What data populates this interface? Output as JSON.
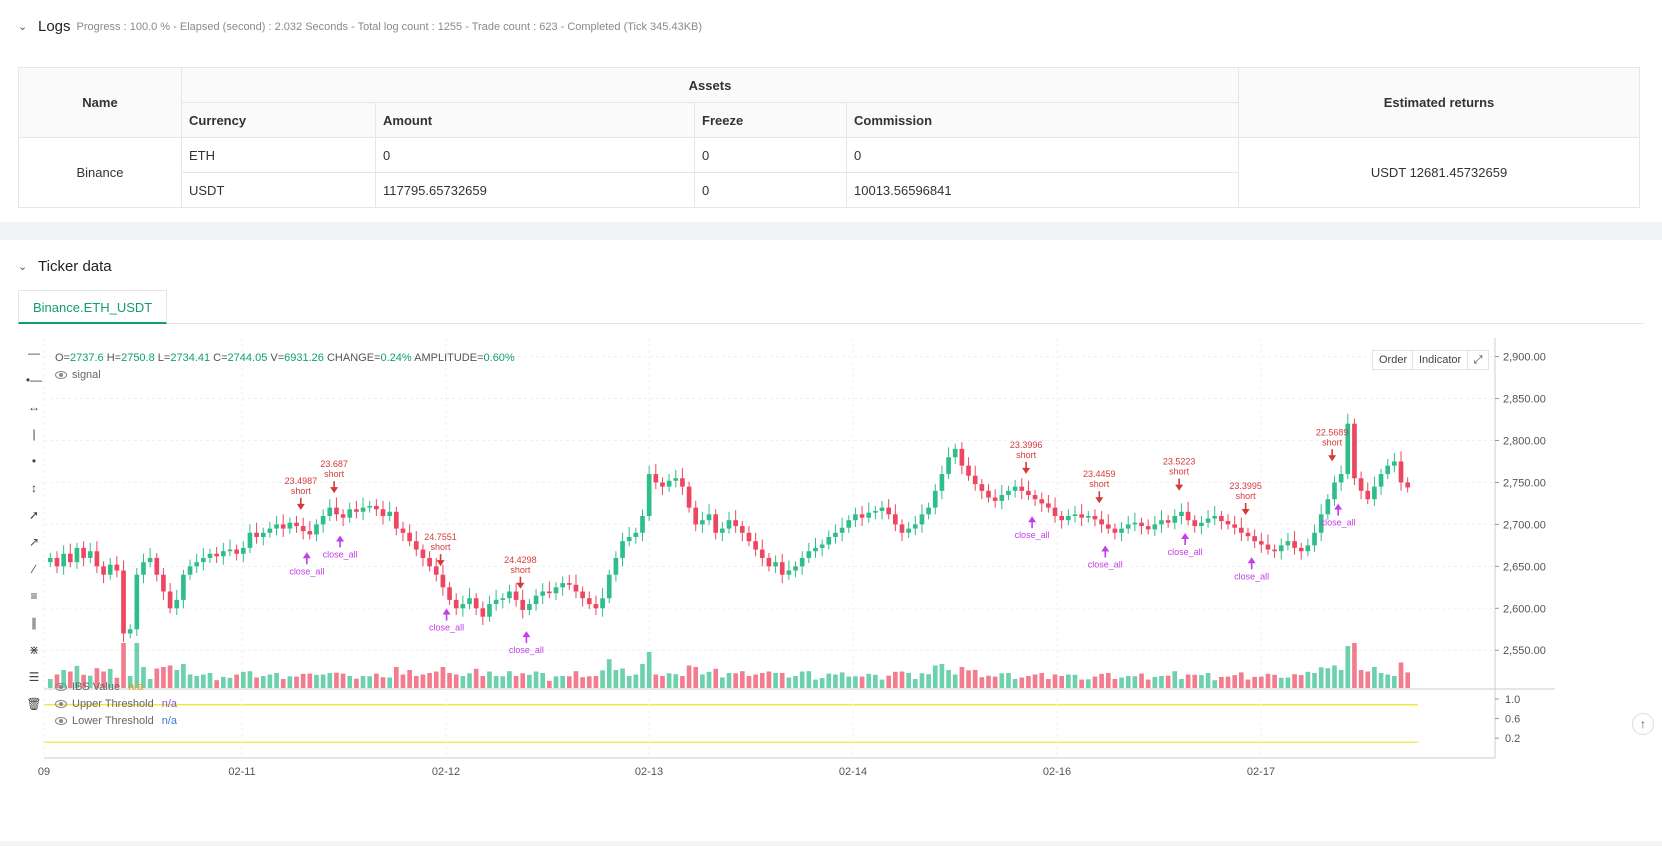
{
  "logs": {
    "title": "Logs",
    "progress": "Progress : 100.0 % - Elapsed (second) : 2.032   Seconds - Total log count : 1255 - Trade count : 623 - Completed (Tick 345.43KB)"
  },
  "assets_table": {
    "headers": {
      "name": "Name",
      "assets": "Assets",
      "estimated": "Estimated returns"
    },
    "sub_headers": [
      "Currency",
      "Amount",
      "Freeze",
      "Commission"
    ],
    "exchange": "Binance",
    "rows": [
      {
        "currency": "ETH",
        "amount": "0",
        "freeze": "0",
        "commission": "0"
      },
      {
        "currency": "USDT",
        "amount": "117795.65732659",
        "freeze": "0",
        "commission": "10013.56596841"
      }
    ],
    "estimated_returns": "USDT 12681.45732659"
  },
  "ticker": {
    "title": "Ticker data",
    "tab": "Binance.ETH_USDT",
    "ohlc": {
      "o": "2737.6",
      "h": "2750.8",
      "l": "2734.41",
      "c": "2744.05",
      "v": "6931.26",
      "change": "0.24%",
      "amplitude": "0.60%"
    },
    "legend_signal": "signal",
    "order_btn": "Order",
    "indicator_btn": "Indicator",
    "ibs_label": "IBS Value",
    "upper_label": "Upper Threshold",
    "lower_label": "Lower Threshold",
    "na": "n/a"
  },
  "chart_data": {
    "type": "candlestick",
    "price_axis": [
      "2,900.00",
      "2,850.00",
      "2,800.00",
      "2,750.00",
      "2,700.00",
      "2,650.00",
      "2,600.00",
      "2,550.00"
    ],
    "ibs_axis": [
      "1.0",
      "0.6",
      "0.2"
    ],
    "x_labels": [
      "09",
      "02-11",
      "02-12",
      "02-13",
      "02-14",
      "02-16",
      "02-17"
    ],
    "ylim": [
      2505,
      2915
    ],
    "close_series": [
      2660,
      2650,
      2665,
      2655,
      2672,
      2660,
      2668,
      2650,
      2640,
      2652,
      2645,
      2570,
      2575,
      2640,
      2655,
      2660,
      2640,
      2620,
      2600,
      2610,
      2640,
      2650,
      2655,
      2660,
      2665,
      2662,
      2668,
      2670,
      2665,
      2672,
      2690,
      2685,
      2690,
      2695,
      2700,
      2695,
      2702,
      2698,
      2692,
      2688,
      2700,
      2710,
      2720,
      2712,
      2708,
      2718,
      2715,
      2720,
      2722,
      2718,
      2710,
      2715,
      2695,
      2690,
      2680,
      2670,
      2660,
      2650,
      2640,
      2625,
      2610,
      2600,
      2605,
      2612,
      2600,
      2590,
      2605,
      2610,
      2612,
      2620,
      2610,
      2598,
      2605,
      2615,
      2620,
      2618,
      2625,
      2630,
      2628,
      2620,
      2612,
      2605,
      2600,
      2612,
      2640,
      2660,
      2680,
      2685,
      2690,
      2710,
      2760,
      2750,
      2745,
      2752,
      2755,
      2745,
      2720,
      2700,
      2705,
      2712,
      2690,
      2695,
      2705,
      2698,
      2690,
      2680,
      2670,
      2660,
      2650,
      2655,
      2640,
      2645,
      2650,
      2660,
      2668,
      2672,
      2676,
      2685,
      2690,
      2696,
      2705,
      2712,
      2708,
      2714,
      2716,
      2720,
      2712,
      2700,
      2690,
      2695,
      2700,
      2712,
      2720,
      2740,
      2760,
      2780,
      2790,
      2770,
      2758,
      2748,
      2740,
      2732,
      2728,
      2735,
      2740,
      2745,
      2740,
      2735,
      2730,
      2725,
      2720,
      2710,
      2705,
      2710,
      2712,
      2708,
      2710,
      2706,
      2700,
      2695,
      2690,
      2695,
      2700,
      2702,
      2698,
      2694,
      2700,
      2705,
      2702,
      2710,
      2715,
      2705,
      2698,
      2702,
      2707,
      2710,
      2704,
      2700,
      2696,
      2690,
      2686,
      2680,
      2676,
      2670,
      2668,
      2675,
      2680,
      2672,
      2668,
      2675,
      2690,
      2712,
      2730,
      2750,
      2760,
      2820,
      2755,
      2740,
      2730,
      2745,
      2760,
      2770,
      2775,
      2750,
      2744
    ],
    "signals": [
      {
        "label": "23.4987",
        "tag": "short"
      },
      {
        "label": "23.687",
        "tag": "short"
      },
      {
        "label": "24.7551",
        "tag": "short"
      },
      {
        "label": "24.4298",
        "tag": "short"
      },
      {
        "label": "23.3996",
        "tag": "short"
      },
      {
        "label": "23.4459",
        "tag": "short"
      },
      {
        "label": "23.5223",
        "tag": "short"
      },
      {
        "label": "23.3995",
        "tag": "short"
      },
      {
        "label": "22.5689",
        "tag": "short"
      }
    ],
    "close_label": "close_all",
    "colors": {
      "up": "#2fbe8a",
      "down": "#ee4560",
      "threshold": "#f0e32a",
      "signal": "#d43a3a",
      "close": "#c23ee8"
    }
  }
}
